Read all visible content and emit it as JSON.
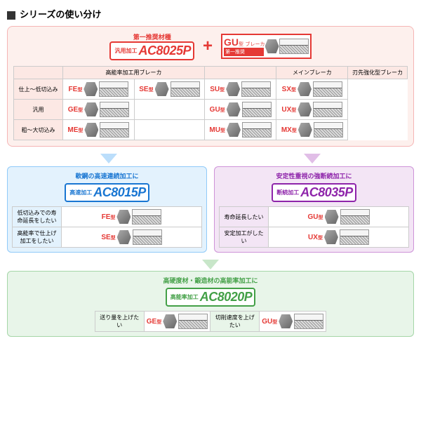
{
  "title": "シリーズの使い分け",
  "recommend_label": "第一推奨材種",
  "main": {
    "pre": "汎用加工",
    "product": "AC8025P",
    "border_color": "#e53935"
  },
  "gu": {
    "label": "第一推奨",
    "code": "GU",
    "suffix": "型",
    "text": "ブレーカ"
  },
  "table_headers": [
    "",
    "高能率加工用ブレーカ",
    "",
    "メインブレーカ",
    "刃先強化型ブレーカ"
  ],
  "rows": [
    {
      "label": "仕上～低切込み",
      "cells": [
        "FE",
        "SE",
        "SU",
        "SX"
      ]
    },
    {
      "label": "汎用",
      "cells": [
        "GE",
        "",
        "GU",
        "UX"
      ]
    },
    {
      "label": "粗～大切込み",
      "cells": [
        "ME",
        "",
        "MU",
        "MX"
      ]
    }
  ],
  "type_suffix": "型",
  "sub1": {
    "title": "軟鋼の高速連続加工に",
    "pre": "高速加工",
    "product": "AC8015P",
    "rows": [
      {
        "label": "低切込みでの寿命延長をしたい",
        "type": "FE"
      },
      {
        "label": "高能率で仕上げ加工をしたい",
        "type": "SE"
      }
    ]
  },
  "sub2": {
    "title": "安定性重視の強断続加工に",
    "pre": "断続加工",
    "product": "AC8035P",
    "rows": [
      {
        "label": "寿命延長したい",
        "type": "GU"
      },
      {
        "label": "安定加工がしたい",
        "type": "UX"
      }
    ]
  },
  "sub3": {
    "title": "高硬度材・鍛造材の高能率加工に",
    "pre": "高能率加工",
    "product": "AC8020P",
    "rows": [
      {
        "label": "送り量を上げたい",
        "type": "GE"
      },
      {
        "label": "切削速度を上げたい",
        "type": "GU"
      }
    ]
  }
}
